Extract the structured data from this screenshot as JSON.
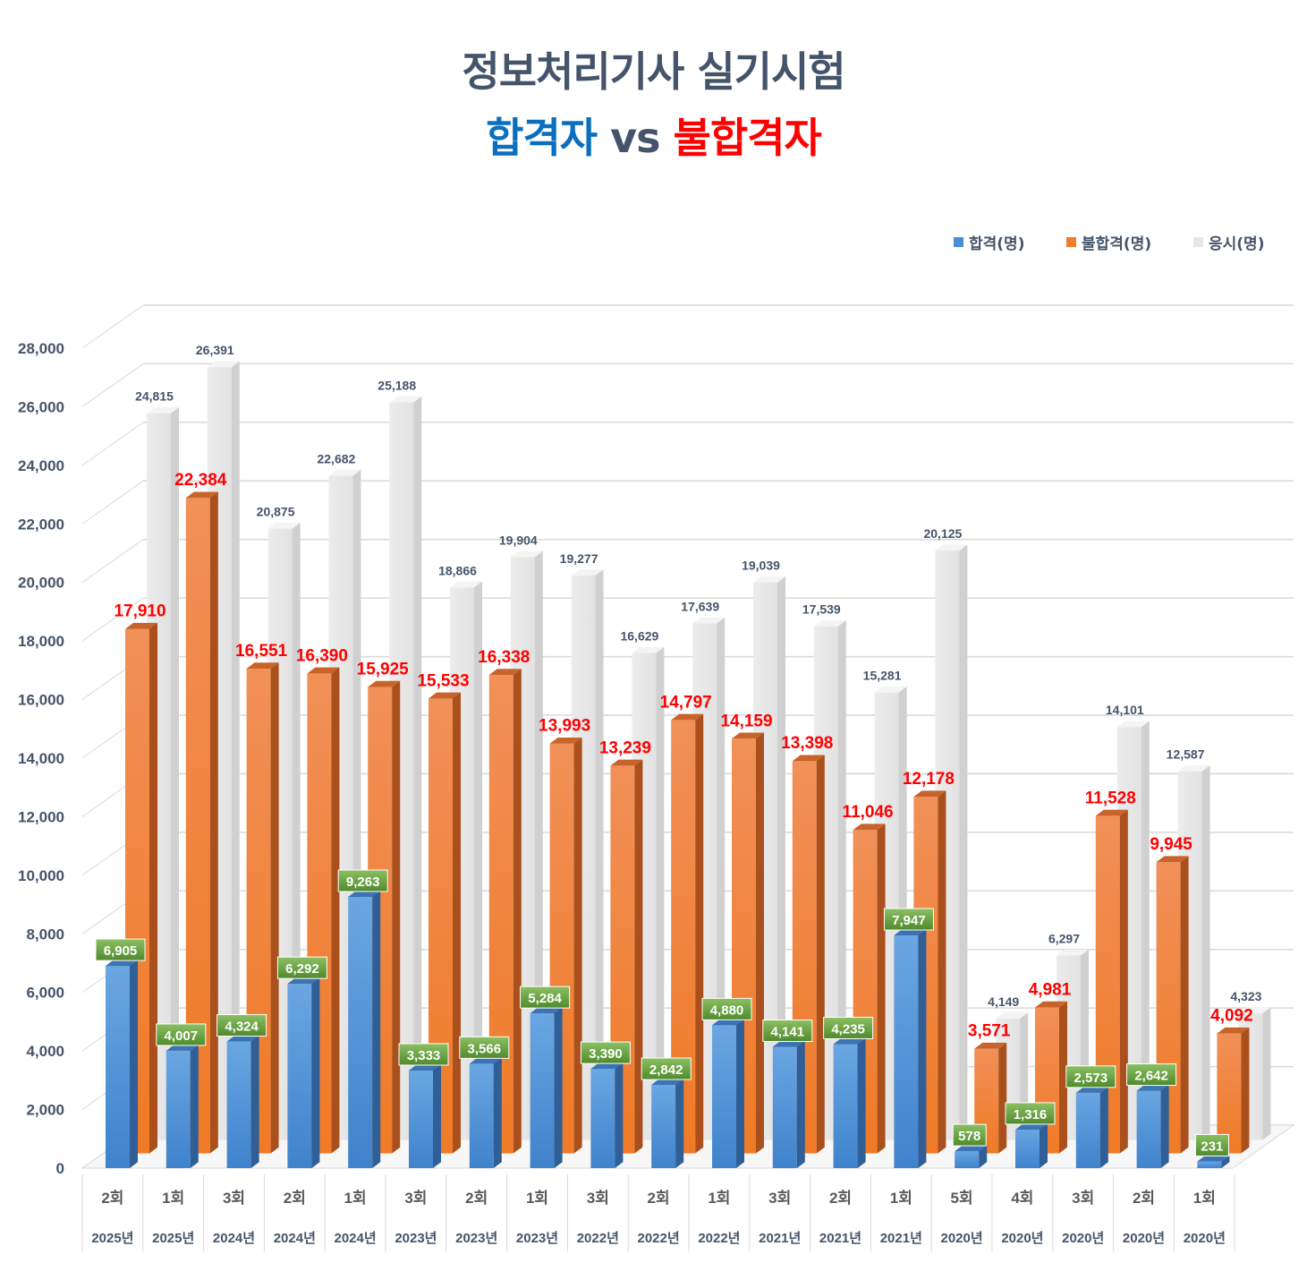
{
  "title": {
    "line1": "정보처리기사 실기시험",
    "pass_word": "합격자",
    "vs_word": "vs",
    "fail_word": "불합격자"
  },
  "legend": [
    {
      "label": "합격(명)",
      "color": "#4a8fd6"
    },
    {
      "label": "불합격(명)",
      "color": "#ed7d31"
    },
    {
      "label": "응시(명)",
      "color": "#e6e6e6"
    }
  ],
  "chart_data": {
    "type": "bar",
    "ylim": [
      0,
      28000
    ],
    "yticks": [
      "0",
      "2,000",
      "4,000",
      "6,000",
      "8,000",
      "10,000",
      "12,000",
      "14,000",
      "16,000",
      "18,000",
      "20,000",
      "22,000",
      "24,000",
      "26,000",
      "28,000"
    ],
    "categories": [
      {
        "round": "2회",
        "year": "2025년"
      },
      {
        "round": "1회",
        "year": "2025년"
      },
      {
        "round": "3회",
        "year": "2024년"
      },
      {
        "round": "2회",
        "year": "2024년"
      },
      {
        "round": "1회",
        "year": "2024년"
      },
      {
        "round": "3회",
        "year": "2023년"
      },
      {
        "round": "2회",
        "year": "2023년"
      },
      {
        "round": "1회",
        "year": "2023년"
      },
      {
        "round": "3회",
        "year": "2022년"
      },
      {
        "round": "2회",
        "year": "2022년"
      },
      {
        "round": "1회",
        "year": "2022년"
      },
      {
        "round": "3회",
        "year": "2021년"
      },
      {
        "round": "2회",
        "year": "2021년"
      },
      {
        "round": "1회",
        "year": "2021년"
      },
      {
        "round": "5회",
        "year": "2020년"
      },
      {
        "round": "4회",
        "year": "2020년"
      },
      {
        "round": "3회",
        "year": "2020년"
      },
      {
        "round": "2회",
        "year": "2020년"
      },
      {
        "round": "1회",
        "year": "2020년"
      }
    ],
    "series": [
      {
        "name": "합격(명)",
        "color": "#4a8fd6",
        "values": [
          6905,
          4007,
          4324,
          6292,
          9263,
          3333,
          3566,
          5284,
          3390,
          2842,
          4880,
          4141,
          4235,
          7947,
          578,
          1316,
          2573,
          2642,
          231
        ],
        "labels": [
          "6,905",
          "4,007",
          "4,324",
          "6,292",
          "9,263",
          "3,333",
          "3,566",
          "5,284",
          "3,390",
          "2,842",
          "4,880",
          "4,141",
          "4,235",
          "7,947",
          "578",
          "1,316",
          "2,573",
          "2,642",
          "231"
        ]
      },
      {
        "name": "불합격(명)",
        "color": "#ed7d31",
        "values": [
          17910,
          22384,
          16551,
          16390,
          15925,
          15533,
          16338,
          13993,
          13239,
          14797,
          14159,
          13398,
          11046,
          12178,
          3571,
          4981,
          11528,
          9945,
          4092
        ],
        "labels": [
          "17,910",
          "22,384",
          "16,551",
          "16,390",
          "15,925",
          "15,533",
          "16,338",
          "13,993",
          "13,239",
          "14,797",
          "14,159",
          "13,398",
          "11,046",
          "12,178",
          "3,571",
          "4,981",
          "11,528",
          "9,945",
          "4,092"
        ]
      },
      {
        "name": "응시(명)",
        "color": "#e6e6e6",
        "values": [
          24815,
          26391,
          20875,
          22682,
          25188,
          18866,
          19904,
          19277,
          16629,
          17639,
          19039,
          17539,
          15281,
          20125,
          4149,
          6297,
          14101,
          12587,
          4323
        ],
        "labels": [
          "24,815",
          "26,391",
          "20,875",
          "22,682",
          "25,188",
          "18,866",
          "19,904",
          "19,277",
          "16,629",
          "17,639",
          "19,039",
          "17,539",
          "15,281",
          "20,125",
          "4,149",
          "6,297",
          "14,101",
          "12,587",
          "4,323"
        ]
      }
    ]
  }
}
